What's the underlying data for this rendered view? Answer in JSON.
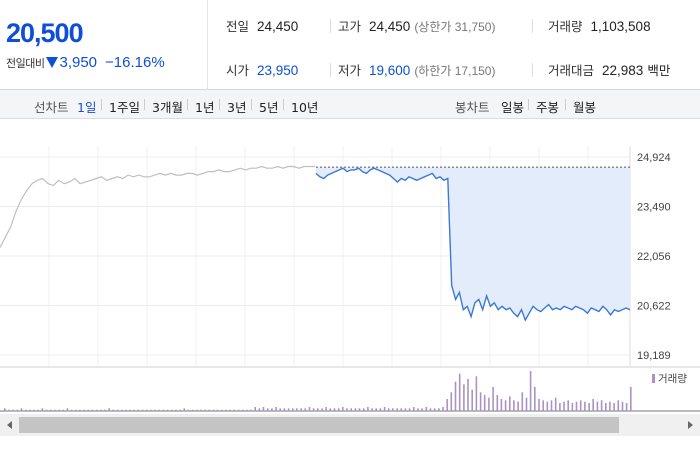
{
  "summary": {
    "price": "20,500",
    "change_label": "전일대비",
    "change_amount": "3,950",
    "change_pct": "−16.16%",
    "prev_close": {
      "label": "전일",
      "value": "24,450"
    },
    "open": {
      "label": "시가",
      "value": "23,950"
    },
    "high": {
      "label": "고가",
      "value": "24,450",
      "limit": "(상한가 31,750)"
    },
    "low": {
      "label": "저가",
      "value": "19,600",
      "limit": "(하한가 17,150)"
    },
    "volume": {
      "label": "거래량",
      "value": "1,103,508"
    },
    "turnover": {
      "label": "거래대금",
      "value": "22,983",
      "unit": "백만"
    }
  },
  "toolbar": {
    "line_chart_label": "선차트",
    "line_periods": [
      "1일",
      "1주일",
      "3개월",
      "1년",
      "3년",
      "5년",
      "10년"
    ],
    "active_period": "1일",
    "candle_chart_label": "봉차트",
    "candle_periods": [
      "일봉",
      "주봉",
      "월봉"
    ]
  },
  "colors": {
    "up": "#d60000",
    "down": "#0d4fd6",
    "today_line": "#3c78d8",
    "today_fill": "#e3ecfb",
    "prev_line": "#bfbfbf",
    "volume_bar": "#a893c4"
  },
  "chart_data": {
    "type": "line",
    "title": "",
    "y_ticks": [
      "24,924",
      "23,490",
      "22,056",
      "20,622",
      "19,189"
    ],
    "ylim": [
      19189,
      24924
    ],
    "prev_close_ref": 24450,
    "series": [
      {
        "role": "previous_day",
        "values": [
          22300,
          22600,
          22900,
          23350,
          23700,
          23950,
          24150,
          24250,
          24300,
          24150,
          24100,
          24250,
          24150,
          24200,
          24300,
          24150,
          24200,
          24250,
          24300,
          24350,
          24250,
          24300,
          24350,
          24300,
          24400,
          24350,
          24400,
          24350,
          24350,
          24400,
          24450,
          24400,
          24450,
          24400,
          24400,
          24450,
          24450,
          24400,
          24450,
          24500,
          24500,
          24550,
          24500,
          24500,
          24550,
          24600,
          24550,
          24600,
          24600,
          24650,
          24600,
          24600,
          24650,
          24600,
          24650,
          24650,
          24600,
          24650,
          24650,
          24650
        ]
      },
      {
        "role": "today",
        "values": [
          24450,
          24350,
          24300,
          24400,
          24450,
          24500,
          24550,
          24600,
          24500,
          24550,
          24550,
          24600,
          24500,
          24450,
          24550,
          24600,
          24550,
          24500,
          24450,
          24400,
          24300,
          24200,
          24300,
          24250,
          24350,
          24300,
          24250,
          24300,
          24350,
          24400,
          24450,
          24300,
          24350,
          24250,
          24300,
          21200,
          20800,
          21000,
          20500,
          20600,
          20300,
          20700,
          20800,
          20500,
          20900,
          20600,
          20700,
          20500,
          20600,
          20500,
          20550,
          20400,
          20300,
          20500,
          20200,
          20400,
          20600,
          20500,
          20450,
          20550,
          20650,
          20500,
          20550,
          20500,
          20600,
          20550,
          20500,
          20600,
          20550,
          20500,
          20400,
          20550,
          20500,
          20450,
          20600,
          20500,
          20350,
          20500,
          20450,
          20500,
          20550,
          20500
        ]
      }
    ],
    "volume": {
      "legend": "거래량",
      "values": [
        2,
        1,
        1,
        1,
        2,
        1,
        1,
        1,
        1,
        2,
        1,
        1,
        1,
        1,
        1,
        2,
        1,
        1,
        1,
        1,
        1,
        1,
        1,
        1,
        1,
        2,
        1,
        1,
        1,
        1,
        1,
        1,
        1,
        1,
        1,
        1,
        1,
        1,
        1,
        1,
        1,
        1,
        1,
        2,
        1,
        1,
        1,
        1,
        1,
        1,
        1,
        1,
        1,
        1,
        1,
        1,
        1,
        1,
        1,
        1,
        3,
        2,
        3,
        2,
        2,
        3,
        2,
        2,
        2,
        2,
        2,
        2,
        2,
        3,
        2,
        2,
        2,
        3,
        2,
        2,
        2,
        3,
        2,
        2,
        2,
        2,
        2,
        3,
        2,
        2,
        2,
        3,
        2,
        2,
        2,
        2,
        2,
        2,
        3,
        2,
        2,
        3,
        2,
        2,
        2,
        3,
        9,
        14,
        22,
        28,
        20,
        24,
        16,
        26,
        14,
        12,
        10,
        18,
        12,
        9,
        8,
        11,
        8,
        7,
        14,
        10,
        30,
        18,
        9,
        8,
        7,
        8,
        10,
        6,
        7,
        8,
        6,
        7,
        8,
        7,
        6,
        9,
        7,
        8,
        6,
        7,
        6,
        8,
        7,
        6,
        18
      ]
    }
  }
}
